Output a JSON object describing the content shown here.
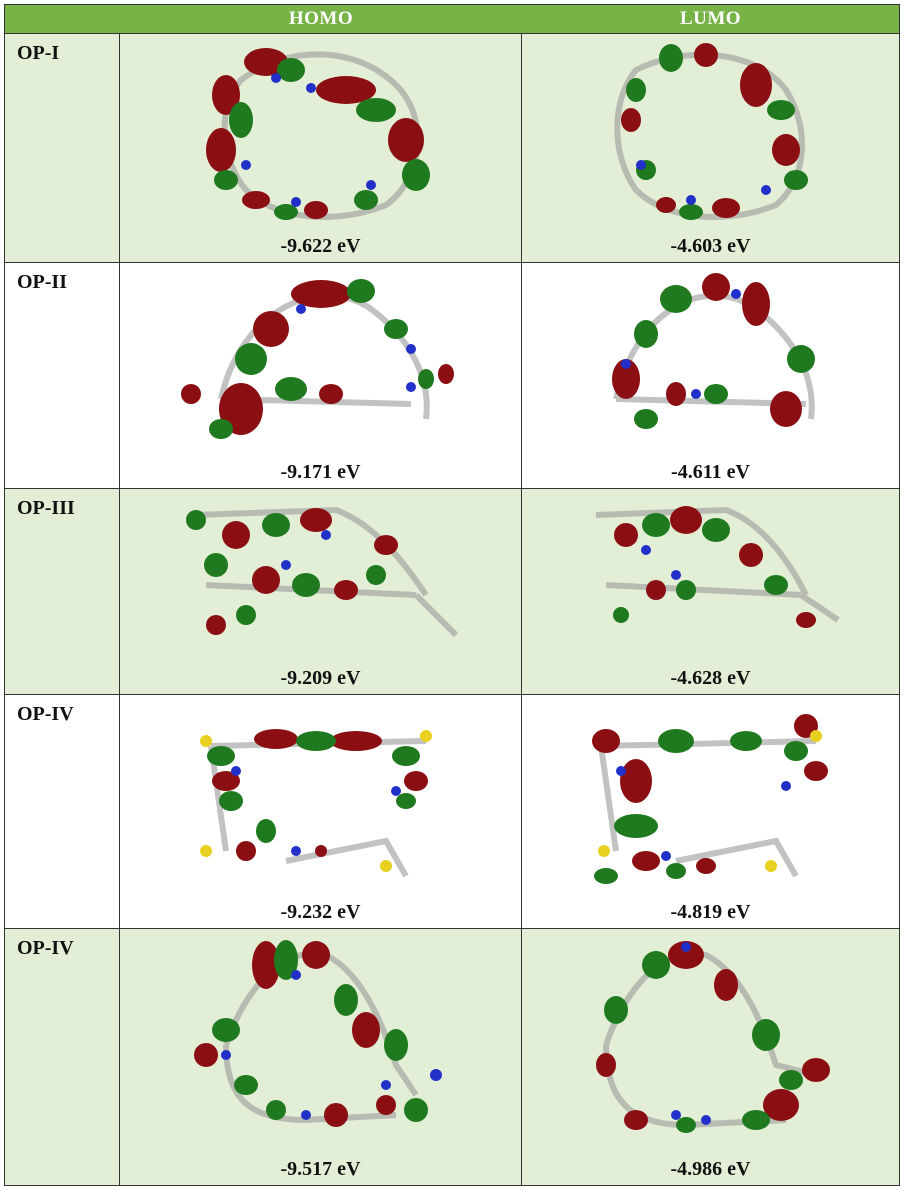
{
  "header": {
    "col_homo": "HOMO",
    "col_lumo": "LUMO"
  },
  "rows": [
    {
      "label": "OP-I",
      "homo_energy": "-9.622 eV",
      "lumo_energy": "-4.603 eV"
    },
    {
      "label": "OP-II",
      "homo_energy": "-9.171 eV",
      "lumo_energy": "-4.611 eV"
    },
    {
      "label": "OP-III",
      "homo_energy": "-9.209 eV",
      "lumo_energy": "-4.628 eV"
    },
    {
      "label": "OP-IV",
      "homo_energy": "-9.232 eV",
      "lumo_energy": "-4.819 eV"
    },
    {
      "label": "OP-IV",
      "homo_energy": "-9.517 eV",
      "lumo_energy": "-4.986 eV"
    }
  ],
  "colors": {
    "header_bg": "#77b347",
    "shaded_row": "#e3eed6",
    "orbital_red": "#8b0f12",
    "orbital_green": "#1f7a1f",
    "nitrogen": "#2030c8",
    "sulfur": "#e8d020",
    "carbon": "#9a9a9a",
    "hydrogen": "#e8e8e8"
  }
}
